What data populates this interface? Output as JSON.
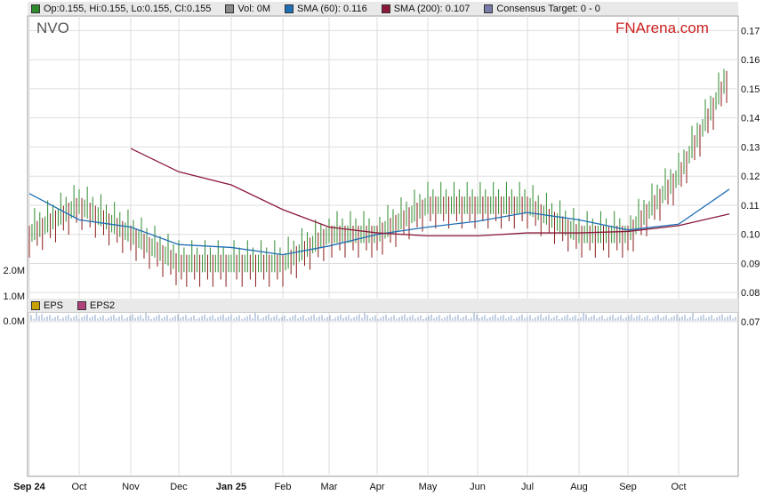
{
  "legend_top": [
    {
      "label": "Op:0.155, Hi:0.155, Lo:0.155, Cl:0.155",
      "color": "#2e8b2e"
    },
    {
      "label": "Vol: 0M",
      "color": "#8a8a8a"
    },
    {
      "label": "SMA (60): 0.116",
      "color": "#1f6fb5"
    },
    {
      "label": "SMA (200): 0.107",
      "color": "#8b1a3a"
    },
    {
      "label": "Consensus Target: 0 - 0",
      "color": "#7a7aa8"
    }
  ],
  "legend_bottom": [
    {
      "label": "EPS",
      "color": "#c8a000"
    },
    {
      "label": "EPS2",
      "color": "#b0407a"
    }
  ],
  "ticker": "NVO",
  "brand": "FNArena.com",
  "colors": {
    "up": "#2e8b2e",
    "down": "#8b1a1a",
    "sma60": "#1f6fb5",
    "sma200": "#8b1a3a",
    "grid": "#dddddd"
  },
  "chart_data": {
    "type": "line",
    "price_axis": {
      "ylim": [
        0.07,
        0.175
      ],
      "ticks": [
        "0.17",
        "0.16",
        "0.15",
        "0.14",
        "0.13",
        "0.12",
        "0.11",
        "0.10",
        "0.09",
        "0.08",
        "0.07"
      ]
    },
    "volume_axis": {
      "ticks": [
        "2.0M",
        "1.0M",
        "0.0M"
      ]
    },
    "x_ticks": [
      "Sep 24",
      "Oct",
      "Nov",
      "Dec",
      "Jan 25",
      "Feb",
      "Mar",
      "Apr",
      "May",
      "Jun",
      "Jul",
      "Aug",
      "Sep",
      "Oct"
    ],
    "series": [
      {
        "name": "SMA (60)",
        "points": [
          [
            "Sep 24",
            0.114
          ],
          [
            "Oct",
            0.105
          ],
          [
            "Nov",
            0.1025
          ],
          [
            "Dec",
            0.0965
          ],
          [
            "Jan 25",
            0.0955
          ],
          [
            "Feb",
            0.093
          ],
          [
            "Mar",
            0.096
          ],
          [
            "Apr",
            0.1
          ],
          [
            "May",
            0.1025
          ],
          [
            "Jun",
            0.1045
          ],
          [
            "Jul",
            0.1075
          ],
          [
            "Aug",
            0.105
          ],
          [
            "Sep",
            0.1015
          ],
          [
            "Oct",
            0.1035
          ],
          [
            "Oct+",
            0.1155
          ]
        ]
      },
      {
        "name": "SMA (200)",
        "points": [
          [
            "Nov",
            0.1295
          ],
          [
            "Dec",
            0.1215
          ],
          [
            "Jan 25",
            0.117
          ],
          [
            "Feb",
            0.1085
          ],
          [
            "Mar",
            0.1025
          ],
          [
            "Apr",
            0.1005
          ],
          [
            "May",
            0.0995
          ],
          [
            "Jun",
            0.0995
          ],
          [
            "Jul",
            0.1005
          ],
          [
            "Aug",
            0.1005
          ],
          [
            "Sep",
            0.101
          ],
          [
            "Oct",
            0.103
          ],
          [
            "Oct+",
            0.107
          ]
        ]
      },
      {
        "name": "Price",
        "points": [
          [
            "Sep 24",
            0.1
          ],
          [
            "Oct",
            0.11
          ],
          [
            "Nov",
            0.1
          ],
          [
            "Dec",
            0.09
          ],
          [
            "Jan 25",
            0.09
          ],
          [
            "Feb",
            0.09
          ],
          [
            "Mar",
            0.1
          ],
          [
            "Apr",
            0.1
          ],
          [
            "May",
            0.11
          ],
          [
            "Jun",
            0.11
          ],
          [
            "Jul",
            0.11
          ],
          [
            "Aug",
            0.1
          ],
          [
            "Sep",
            0.1
          ],
          [
            "Oct",
            0.12
          ],
          [
            "Oct+",
            0.155
          ]
        ]
      }
    ]
  }
}
